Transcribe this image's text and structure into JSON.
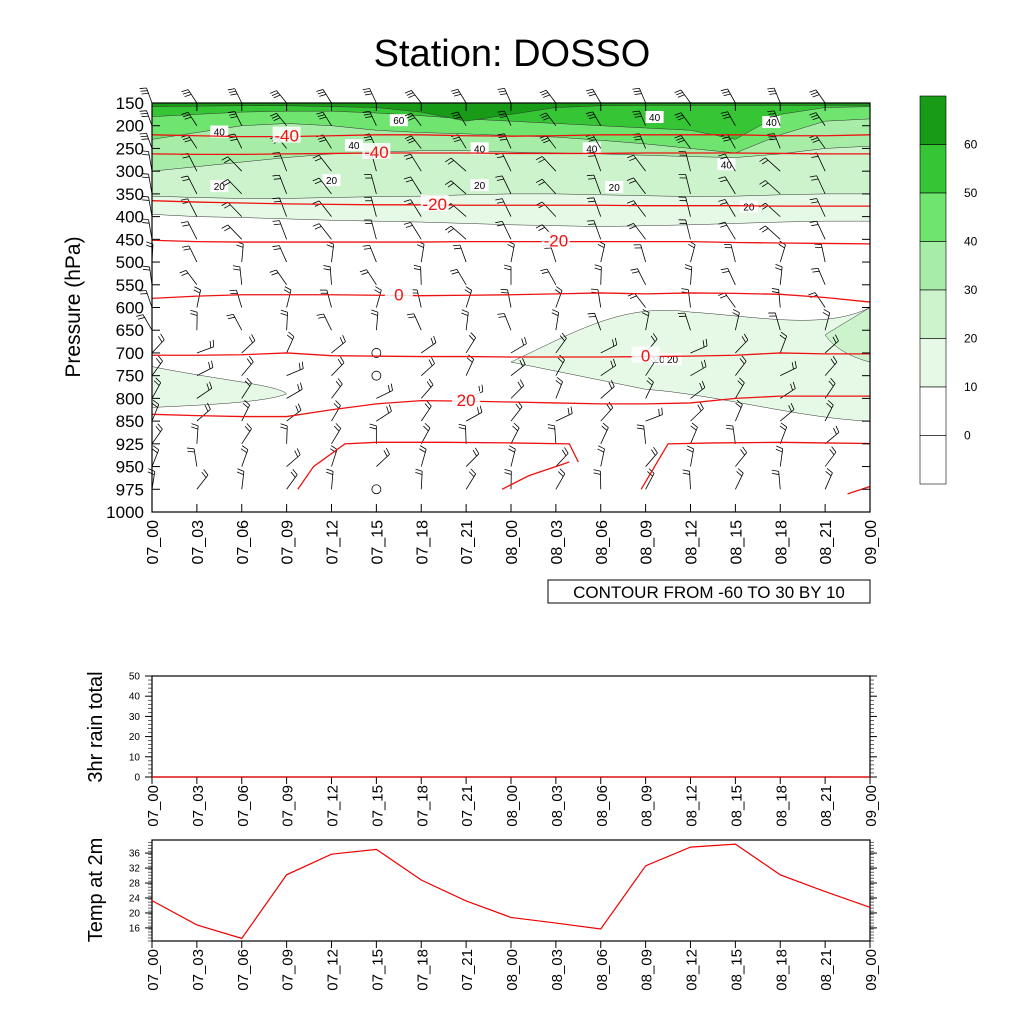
{
  "title": "Station: DOSSO",
  "chart_data": [
    {
      "type": "heatmap",
      "ylabel": "Pressure (hPa)",
      "yticks": [
        "150",
        "200",
        "250",
        "300",
        "350",
        "400",
        "450",
        "500",
        "550",
        "600",
        "650",
        "700",
        "750",
        "800",
        "850",
        "925",
        "950",
        "975",
        "1000"
      ],
      "xticks": [
        "07_00",
        "07_03",
        "07_06",
        "07_09",
        "07_12",
        "07_15",
        "07_18",
        "07_21",
        "08_00",
        "08_03",
        "08_06",
        "08_09",
        "08_12",
        "08_15",
        "08_18",
        "08_21",
        "09_00"
      ],
      "contour_note": "CONTOUR FROM -60 TO 30 BY 10",
      "shading_levels": [
        "0",
        "10",
        "20",
        "30",
        "40",
        "50",
        "60"
      ],
      "shading_colors": [
        "#ffffff",
        "#ffffff",
        "#e6f9e6",
        "#ccf3cc",
        "#a7eda7",
        "#6fe46f",
        "#35c535",
        "#189c18"
      ],
      "temperature_contours": [
        {
          "value": -40,
          "label": "-40",
          "pressure": [
            220,
            222,
            224,
            224,
            222,
            220,
            220,
            222,
            223,
            222,
            220,
            220,
            220,
            220,
            222,
            222,
            220
          ]
        },
        {
          "value": -40,
          "label": "-40",
          "pressure": [
            262,
            263,
            263,
            262,
            261,
            260,
            260,
            260,
            261,
            261,
            261,
            260,
            260,
            260,
            261,
            262,
            262
          ]
        },
        {
          "value": -20,
          "label": "-20",
          "pressure": [
            365,
            368,
            370,
            372,
            373,
            374,
            374,
            375,
            375,
            375,
            375,
            376,
            376,
            376,
            377,
            377,
            377
          ]
        },
        {
          "value": -20,
          "label": "-20",
          "pressure": [
            452,
            455,
            456,
            456,
            456,
            456,
            456,
            455,
            455,
            455,
            455,
            455,
            455,
            457,
            458,
            459,
            460
          ]
        },
        {
          "value": 0,
          "label": "0",
          "pressure": [
            580,
            575,
            572,
            572,
            572,
            573,
            574,
            573,
            572,
            570,
            568,
            570,
            568,
            569,
            571,
            578,
            588
          ]
        },
        {
          "value": 0,
          "label": "0",
          "pressure": [
            705,
            705,
            704,
            700,
            706,
            707,
            708,
            708,
            709,
            709,
            709,
            708,
            707,
            705,
            700,
            702,
            702
          ]
        },
        {
          "value": 20,
          "label": "20",
          "pressure": [
            835,
            838,
            840,
            840,
            825,
            812,
            805,
            806,
            808,
            810,
            812,
            812,
            810,
            800,
            795,
            795,
            795
          ]
        }
      ],
      "heat_contours_labels": [
        "40",
        "40",
        "40",
        "40",
        "40",
        "40",
        "40",
        "20",
        "20",
        "20",
        "20",
        "20",
        "20",
        "20",
        "60"
      ],
      "wind_barbs": "shown at every tick and pressure level"
    },
    {
      "type": "line",
      "ylabel": "3hr rain total",
      "yticks": [
        "0",
        "10",
        "20",
        "30",
        "40",
        "50"
      ],
      "ylim": [
        0,
        50
      ],
      "x": [
        "07_00",
        "07_03",
        "07_06",
        "07_09",
        "07_12",
        "07_15",
        "07_18",
        "07_21",
        "08_00",
        "08_03",
        "08_06",
        "08_09",
        "08_12",
        "08_15",
        "08_18",
        "08_21",
        "09_00"
      ],
      "values": [
        0,
        0,
        0,
        0,
        0,
        0,
        0,
        0,
        0,
        0,
        0,
        0,
        0,
        0,
        0,
        0,
        0
      ]
    },
    {
      "type": "line",
      "ylabel": "Temp at 2m",
      "yticks": [
        "16",
        "20",
        "24",
        "28",
        "32",
        "36"
      ],
      "ylim": [
        12.5,
        39.5
      ],
      "x": [
        "07_00",
        "07_03",
        "07_06",
        "07_09",
        "07_12",
        "07_15",
        "07_18",
        "07_21",
        "08_00",
        "08_03",
        "08_06",
        "08_09",
        "08_12",
        "08_15",
        "08_18",
        "08_21",
        "09_00"
      ],
      "values": [
        23.3,
        16.8,
        13.2,
        30.2,
        35.7,
        37.0,
        28.8,
        23.2,
        18.8,
        17.3,
        15.7,
        32.6,
        37.6,
        38.4,
        30.2,
        25.7,
        21.5
      ],
      "line_color": "#ee0000"
    }
  ]
}
